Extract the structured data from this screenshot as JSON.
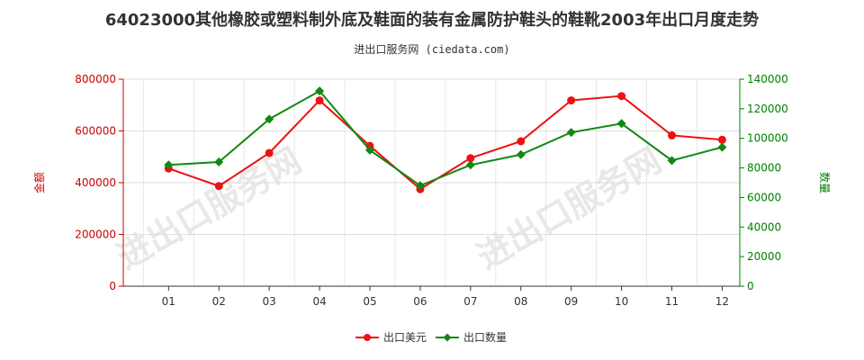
{
  "title": "64023000其他橡胶或塑料制外底及鞋面的装有金属防护鞋头的鞋靴2003年出口月度走势",
  "subtitle": "进出口服务网 (ciedata.com)",
  "watermark": "进出口服务网",
  "chart_data": {
    "type": "line",
    "categories": [
      "01",
      "02",
      "03",
      "04",
      "05",
      "06",
      "07",
      "08",
      "09",
      "10",
      "11",
      "12"
    ],
    "y_left": {
      "label": "金额",
      "ylim": [
        0,
        800000
      ],
      "ticks": [
        "0",
        "200000",
        "400000",
        "600000",
        "800000"
      ],
      "color": "#ff0000"
    },
    "y_right": {
      "label": "数量",
      "ylim": [
        0,
        140000
      ],
      "ticks": [
        "0",
        "20000",
        "40000",
        "60000",
        "80000",
        "100000",
        "120000",
        "140000"
      ],
      "color": "#008000"
    },
    "series": [
      {
        "name": "出口美元",
        "axis": "left",
        "color": "#ee1111",
        "values": [
          455000,
          387000,
          515000,
          718000,
          542000,
          375000,
          495000,
          560000,
          718000,
          735000,
          583000,
          566000
        ]
      },
      {
        "name": "出口数量",
        "axis": "right",
        "color": "#118811",
        "values": [
          82000,
          84000,
          113000,
          132000,
          92000,
          68000,
          82000,
          89000,
          104000,
          110000,
          85000,
          94000
        ]
      }
    ],
    "grid": true,
    "legend_position": "bottom-center"
  }
}
